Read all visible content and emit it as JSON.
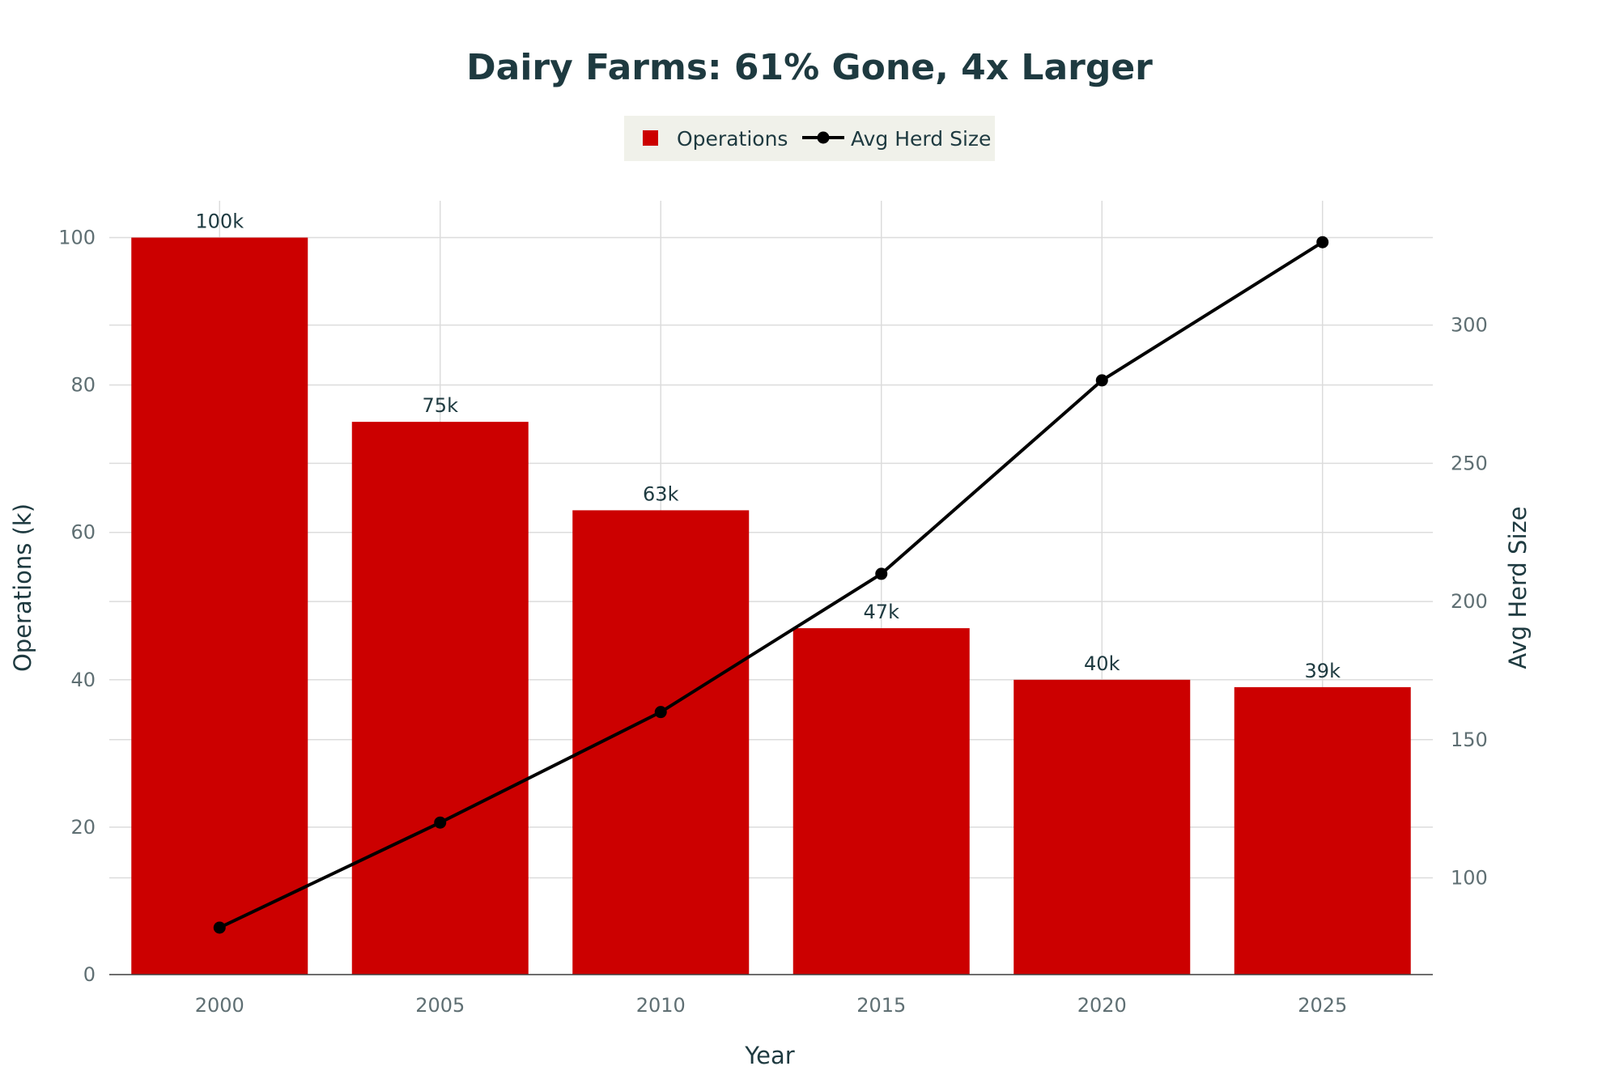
{
  "chart_data": {
    "type": "bar",
    "title": "Dairy Farms: 61% Gone, 4x Larger",
    "xlabel": "Year",
    "ylabel": "Operations (k)",
    "y2label": "Avg Herd Size",
    "categories": [
      "2000",
      "2005",
      "2010",
      "2015",
      "2020",
      "2025"
    ],
    "series": [
      {
        "name": "Operations",
        "type": "bar",
        "axis": "left",
        "color": "#cc0000",
        "values": [
          100,
          75,
          63,
          47,
          40,
          39
        ],
        "labels": [
          "100k",
          "75k",
          "63k",
          "47k",
          "40k",
          "39k"
        ]
      },
      {
        "name": "Avg Herd Size",
        "type": "line",
        "axis": "right",
        "color": "#000000",
        "values": [
          82,
          120,
          160,
          210,
          280,
          330
        ]
      }
    ],
    "ylim": [
      0,
      105
    ],
    "y2lim": [
      65,
      345
    ],
    "yticks": [
      0,
      20,
      40,
      60,
      80,
      100
    ],
    "y2ticks": [
      100,
      150,
      200,
      250,
      300
    ],
    "grid": true,
    "legend": "top-center"
  }
}
